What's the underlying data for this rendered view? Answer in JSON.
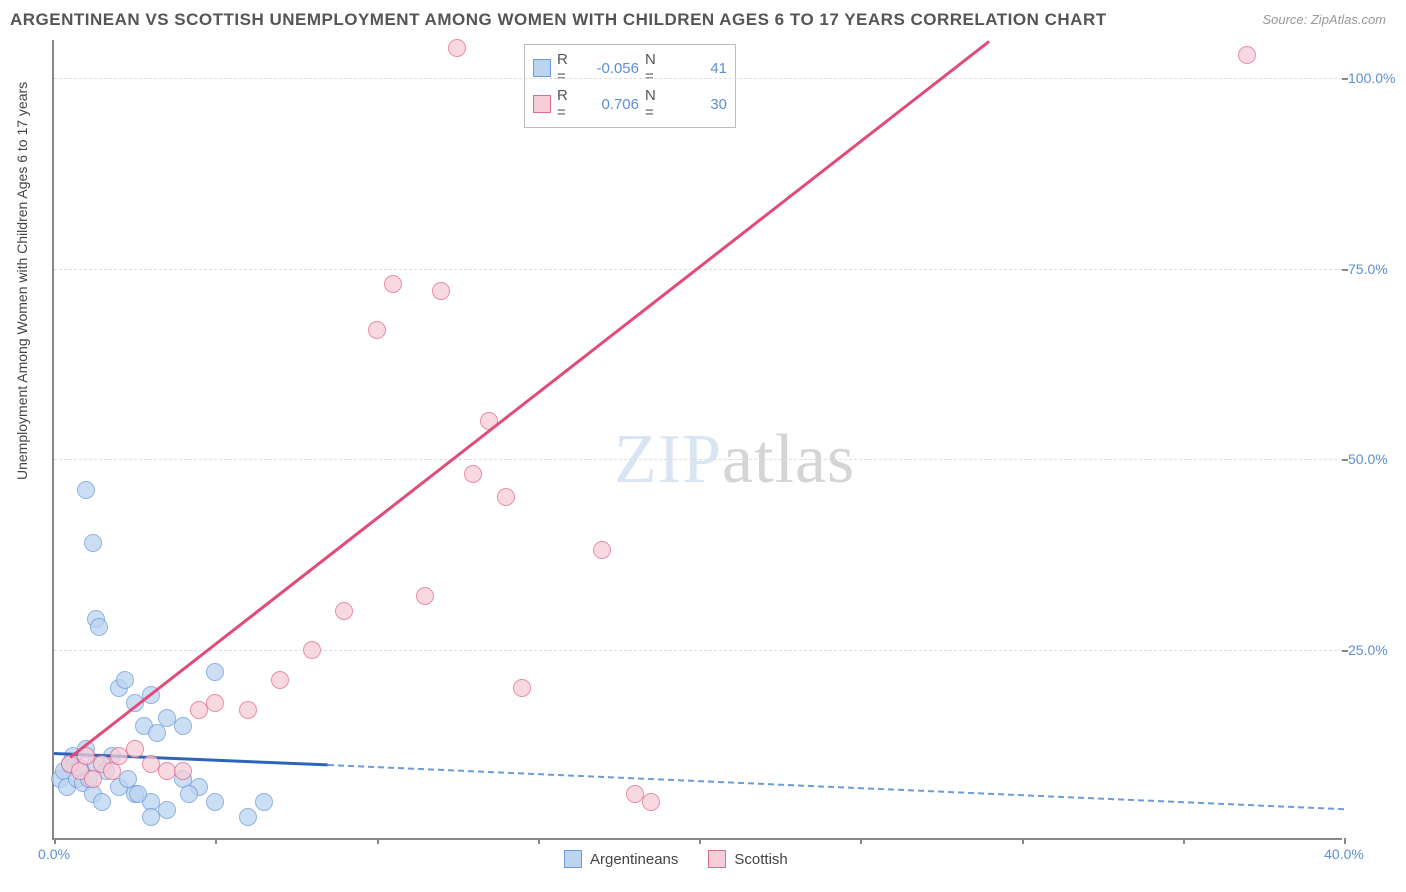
{
  "title": "ARGENTINEAN VS SCOTTISH UNEMPLOYMENT AMONG WOMEN WITH CHILDREN AGES 6 TO 17 YEARS CORRELATION CHART",
  "source_label": "Source: ZipAtlas.com",
  "ylabel": "Unemployment Among Women with Children Ages 6 to 17 years",
  "watermark": {
    "zip": "ZIP",
    "atlas": "atlas"
  },
  "chart": {
    "type": "scatter",
    "xlim": [
      0,
      40
    ],
    "ylim": [
      0,
      105
    ],
    "xtick_positions": [
      0,
      5,
      10,
      15,
      20,
      25,
      30,
      35,
      40
    ],
    "xtick_labels": [
      "0.0%",
      "",
      "",
      "",
      "",
      "",
      "",
      "",
      "40.0%"
    ],
    "ytick_positions": [
      25,
      50,
      75,
      100
    ],
    "ytick_labels": [
      "25.0%",
      "50.0%",
      "75.0%",
      "100.0%"
    ],
    "background_color": "#ffffff",
    "grid_color": "#dddddd",
    "point_radius": 9,
    "series": [
      {
        "name": "Argentineans",
        "fill": "#bcd4f0",
        "stroke": "#6b9bd8",
        "R": "-0.056",
        "N": "41",
        "trend": {
          "x1": 0,
          "y1": 11.5,
          "x2": 8.5,
          "y2": 10.0,
          "color": "#2d66b8",
          "width": 3
        },
        "trend_ext": {
          "x1": 8.5,
          "y1": 10.0,
          "x2": 40,
          "y2": 4.2,
          "color": "#6b9bd8",
          "dashed": true
        },
        "points": [
          [
            0.2,
            8
          ],
          [
            0.3,
            9
          ],
          [
            0.4,
            7
          ],
          [
            0.5,
            10
          ],
          [
            0.6,
            11
          ],
          [
            0.7,
            8
          ],
          [
            0.8,
            9.5
          ],
          [
            0.9,
            7.5
          ],
          [
            1.0,
            12
          ],
          [
            1.1,
            8
          ],
          [
            1.2,
            6
          ],
          [
            1.3,
            10
          ],
          [
            1.5,
            5
          ],
          [
            1.6,
            9
          ],
          [
            1.8,
            11
          ],
          [
            1.0,
            46
          ],
          [
            1.2,
            39
          ],
          [
            1.3,
            29
          ],
          [
            1.4,
            28
          ],
          [
            2.0,
            20
          ],
          [
            2.2,
            21
          ],
          [
            2.5,
            18
          ],
          [
            2.8,
            15
          ],
          [
            3.0,
            19
          ],
          [
            3.2,
            14
          ],
          [
            2.5,
            6
          ],
          [
            3.0,
            5
          ],
          [
            3.5,
            4
          ],
          [
            4.0,
            8
          ],
          [
            4.5,
            7
          ],
          [
            5.0,
            22
          ],
          [
            2.0,
            7
          ],
          [
            2.3,
            8
          ],
          [
            2.6,
            6
          ],
          [
            3.0,
            3
          ],
          [
            4.2,
            6
          ],
          [
            5.0,
            5
          ],
          [
            6.0,
            3
          ],
          [
            6.5,
            5
          ],
          [
            3.5,
            16
          ],
          [
            4.0,
            15
          ]
        ]
      },
      {
        "name": "Scottish",
        "fill": "#f7cdd8",
        "stroke": "#e06a8c",
        "R": "0.706",
        "N": "30",
        "trend": {
          "x1": 0.5,
          "y1": 11,
          "x2": 29,
          "y2": 105,
          "color": "#e14b77",
          "width": 2.5
        },
        "points": [
          [
            0.5,
            10
          ],
          [
            0.8,
            9
          ],
          [
            1.0,
            11
          ],
          [
            1.2,
            8
          ],
          [
            1.5,
            10
          ],
          [
            1.8,
            9
          ],
          [
            2.0,
            11
          ],
          [
            2.5,
            12
          ],
          [
            3.0,
            10
          ],
          [
            3.5,
            9
          ],
          [
            4.0,
            9
          ],
          [
            4.5,
            17
          ],
          [
            5.0,
            18
          ],
          [
            6.0,
            17
          ],
          [
            7.0,
            21
          ],
          [
            8.0,
            25
          ],
          [
            9.0,
            30
          ],
          [
            10.0,
            67
          ],
          [
            10.5,
            73
          ],
          [
            11.5,
            32
          ],
          [
            12.0,
            72
          ],
          [
            12.5,
            104
          ],
          [
            13.0,
            48
          ],
          [
            13.5,
            55
          ],
          [
            14.0,
            45
          ],
          [
            14.5,
            20
          ],
          [
            17.0,
            38
          ],
          [
            18.5,
            5
          ],
          [
            18.0,
            6
          ],
          [
            37.0,
            103
          ]
        ]
      }
    ]
  },
  "legend_top": {
    "r_label": "R =",
    "n_label": "N ="
  },
  "legend_bottom": {
    "items": [
      "Argentineans",
      "Scottish"
    ]
  }
}
